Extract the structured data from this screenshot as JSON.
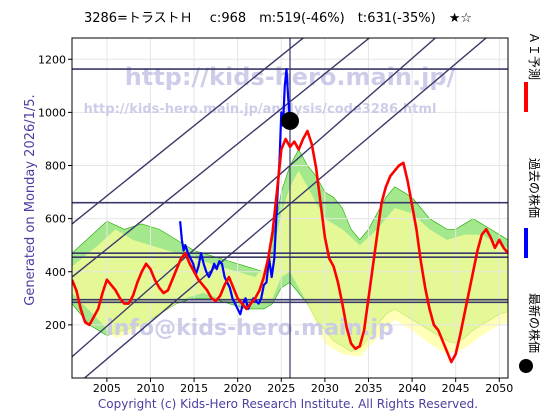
{
  "chart_data": {
    "type": "line",
    "title": "3286=トラストＨ　 c:968　m:519(-46%)　t:631(-35%)　★☆",
    "side_label": "Generated on Monday 2026/1/5.",
    "copyright": "Copyright (c) Kids-Hero Research Institute. All Rights Reserved.",
    "watermarks": {
      "top": "http://kids-hero.main.jp/",
      "mid": "http://kids-hero.main.jp/analysis/code3286.html",
      "bottom": "info@kids-hero.main.jp"
    },
    "xlim": [
      2001,
      2051
    ],
    "ylim": [
      0,
      1280
    ],
    "x_ticks": [
      2005,
      2010,
      2015,
      2020,
      2025,
      2030,
      2035,
      2040,
      2045,
      2050
    ],
    "y_ticks": [
      200,
      400,
      600,
      800,
      1000,
      1200
    ],
    "legend": [
      {
        "label": "ＡＩ予測",
        "color": "#ff0000",
        "marker": "line"
      },
      {
        "label": "過去の株価",
        "color": "#0000ff",
        "marker": "line"
      },
      {
        "label": "最新の株価",
        "color": "#000000",
        "marker": "dot"
      }
    ],
    "latest_point": {
      "x": 2026.0,
      "y": 968
    },
    "horizontal_levels": [
      1163,
      660,
      470,
      455,
      295,
      285
    ],
    "diagonal_lines": [
      {
        "x0": 2001,
        "y0": -40,
        "x1": 2051,
        "y1": 1350
      },
      {
        "x0": 2001,
        "y0": 80,
        "x1": 2051,
        "y1": 1520
      },
      {
        "x0": 2001,
        "y0": 380,
        "x1": 2051,
        "y1": 1700
      },
      {
        "x0": 2001,
        "y0": 580,
        "x1": 2051,
        "y1": 1900
      }
    ],
    "series": [
      {
        "name": "過去の株価",
        "color": "#0000ff",
        "points": [
          [
            2013.4,
            590
          ],
          [
            2013.6,
            520
          ],
          [
            2013.8,
            480
          ],
          [
            2014.0,
            500
          ],
          [
            2014.3,
            470
          ],
          [
            2014.6,
            450
          ],
          [
            2014.9,
            430
          ],
          [
            2015.2,
            390
          ],
          [
            2015.5,
            420
          ],
          [
            2015.8,
            470
          ],
          [
            2016.1,
            430
          ],
          [
            2016.4,
            400
          ],
          [
            2016.7,
            380
          ],
          [
            2017.0,
            400
          ],
          [
            2017.3,
            430
          ],
          [
            2017.6,
            410
          ],
          [
            2017.9,
            440
          ],
          [
            2018.2,
            430
          ],
          [
            2018.5,
            380
          ],
          [
            2018.8,
            360
          ],
          [
            2019.1,
            340
          ],
          [
            2019.4,
            300
          ],
          [
            2019.7,
            280
          ],
          [
            2020.0,
            260
          ],
          [
            2020.3,
            240
          ],
          [
            2020.6,
            280
          ],
          [
            2020.9,
            300
          ],
          [
            2021.2,
            260
          ],
          [
            2021.5,
            280
          ],
          [
            2021.8,
            300
          ],
          [
            2022.1,
            290
          ],
          [
            2022.4,
            280
          ],
          [
            2022.7,
            300
          ],
          [
            2023.0,
            350
          ],
          [
            2023.3,
            360
          ],
          [
            2023.6,
            450
          ],
          [
            2023.9,
            380
          ],
          [
            2024.2,
            450
          ],
          [
            2024.5,
            650
          ],
          [
            2024.8,
            820
          ],
          [
            2025.0,
            1000
          ],
          [
            2025.2,
            950
          ],
          [
            2025.4,
            1100
          ],
          [
            2025.6,
            1163
          ],
          [
            2025.8,
            1050
          ],
          [
            2026.0,
            968
          ]
        ]
      },
      {
        "name": "ＡＩ予測",
        "color": "#ff0000",
        "points": [
          [
            2001.0,
            370
          ],
          [
            2001.5,
            330
          ],
          [
            2002.0,
            260
          ],
          [
            2002.5,
            210
          ],
          [
            2003.0,
            200
          ],
          [
            2003.5,
            230
          ],
          [
            2004.0,
            260
          ],
          [
            2004.5,
            320
          ],
          [
            2005.0,
            370
          ],
          [
            2005.5,
            350
          ],
          [
            2006.0,
            330
          ],
          [
            2006.5,
            300
          ],
          [
            2007.0,
            280
          ],
          [
            2007.5,
            280
          ],
          [
            2008.0,
            310
          ],
          [
            2008.5,
            360
          ],
          [
            2009.0,
            400
          ],
          [
            2009.5,
            430
          ],
          [
            2010.0,
            410
          ],
          [
            2010.5,
            370
          ],
          [
            2011.0,
            340
          ],
          [
            2011.5,
            320
          ],
          [
            2012.0,
            330
          ],
          [
            2012.5,
            370
          ],
          [
            2013.0,
            410
          ],
          [
            2013.5,
            450
          ],
          [
            2014.0,
            470
          ],
          [
            2014.5,
            430
          ],
          [
            2015.0,
            400
          ],
          [
            2015.5,
            370
          ],
          [
            2016.0,
            350
          ],
          [
            2016.5,
            330
          ],
          [
            2017.0,
            300
          ],
          [
            2017.5,
            290
          ],
          [
            2018.0,
            310
          ],
          [
            2018.5,
            350
          ],
          [
            2019.0,
            380
          ],
          [
            2019.5,
            340
          ],
          [
            2020.0,
            300
          ],
          [
            2020.5,
            280
          ],
          [
            2021.0,
            260
          ],
          [
            2021.5,
            280
          ],
          [
            2022.0,
            300
          ],
          [
            2022.5,
            330
          ],
          [
            2023.0,
            380
          ],
          [
            2023.5,
            450
          ],
          [
            2024.0,
            550
          ],
          [
            2024.5,
            700
          ],
          [
            2025.0,
            860
          ],
          [
            2025.5,
            900
          ],
          [
            2026.0,
            870
          ],
          [
            2026.5,
            890
          ],
          [
            2027.0,
            860
          ],
          [
            2027.5,
            900
          ],
          [
            2028.0,
            930
          ],
          [
            2028.5,
            880
          ],
          [
            2029.0,
            790
          ],
          [
            2029.5,
            660
          ],
          [
            2030.0,
            530
          ],
          [
            2030.5,
            450
          ],
          [
            2031.0,
            420
          ],
          [
            2031.5,
            360
          ],
          [
            2032.0,
            280
          ],
          [
            2032.5,
            190
          ],
          [
            2033.0,
            130
          ],
          [
            2033.5,
            110
          ],
          [
            2034.0,
            120
          ],
          [
            2034.5,
            180
          ],
          [
            2035.0,
            300
          ],
          [
            2035.5,
            420
          ],
          [
            2036.0,
            540
          ],
          [
            2036.5,
            660
          ],
          [
            2037.0,
            720
          ],
          [
            2037.5,
            760
          ],
          [
            2038.0,
            780
          ],
          [
            2038.5,
            800
          ],
          [
            2039.0,
            810
          ],
          [
            2039.5,
            740
          ],
          [
            2040.0,
            650
          ],
          [
            2040.5,
            560
          ],
          [
            2041.0,
            440
          ],
          [
            2041.5,
            340
          ],
          [
            2042.0,
            260
          ],
          [
            2042.5,
            200
          ],
          [
            2043.0,
            180
          ],
          [
            2043.5,
            140
          ],
          [
            2044.0,
            100
          ],
          [
            2044.5,
            60
          ],
          [
            2045.0,
            90
          ],
          [
            2045.5,
            160
          ],
          [
            2046.0,
            240
          ],
          [
            2046.5,
            320
          ],
          [
            2047.0,
            400
          ],
          [
            2047.5,
            480
          ],
          [
            2048.0,
            540
          ],
          [
            2048.5,
            560
          ],
          [
            2049.0,
            530
          ],
          [
            2049.5,
            490
          ],
          [
            2050.0,
            520
          ],
          [
            2050.5,
            490
          ],
          [
            2051.0,
            470
          ]
        ]
      }
    ],
    "simulation_band": {
      "color": "#33cc00",
      "upper": [
        [
          2001,
          470
        ],
        [
          2003,
          530
        ],
        [
          2005,
          590
        ],
        [
          2007,
          560
        ],
        [
          2009,
          580
        ],
        [
          2011,
          560
        ],
        [
          2013,
          520
        ],
        [
          2015,
          480
        ],
        [
          2017,
          460
        ],
        [
          2019,
          440
        ],
        [
          2021,
          420
        ],
        [
          2023,
          400
        ],
        [
          2024,
          520
        ],
        [
          2025,
          700
        ],
        [
          2026,
          800
        ],
        [
          2027,
          860
        ],
        [
          2028,
          800
        ],
        [
          2029,
          760
        ],
        [
          2030,
          700
        ],
        [
          2031,
          680
        ],
        [
          2032,
          640
        ],
        [
          2033,
          560
        ],
        [
          2034,
          520
        ],
        [
          2035,
          560
        ],
        [
          2036,
          620
        ],
        [
          2037,
          680
        ],
        [
          2038,
          720
        ],
        [
          2039,
          700
        ],
        [
          2040,
          680
        ],
        [
          2041,
          640
        ],
        [
          2042,
          600
        ],
        [
          2043,
          580
        ],
        [
          2044,
          560
        ],
        [
          2045,
          560
        ],
        [
          2046,
          580
        ],
        [
          2047,
          600
        ],
        [
          2048,
          580
        ],
        [
          2049,
          560
        ],
        [
          2050,
          540
        ],
        [
          2051,
          520
        ]
      ],
      "lower": [
        [
          2001,
          280
        ],
        [
          2003,
          200
        ],
        [
          2005,
          160
        ],
        [
          2007,
          180
        ],
        [
          2009,
          200
        ],
        [
          2011,
          240
        ],
        [
          2013,
          280
        ],
        [
          2015,
          300
        ],
        [
          2017,
          300
        ],
        [
          2019,
          280
        ],
        [
          2021,
          260
        ],
        [
          2023,
          260
        ],
        [
          2024,
          280
        ],
        [
          2025,
          340
        ],
        [
          2026,
          360
        ],
        [
          2027,
          320
        ],
        [
          2028,
          280
        ],
        [
          2029,
          220
        ],
        [
          2030,
          180
        ],
        [
          2031,
          140
        ],
        [
          2032,
          120
        ],
        [
          2033,
          100
        ],
        [
          2034,
          110
        ],
        [
          2035,
          150
        ],
        [
          2036,
          200
        ],
        [
          2037,
          240
        ],
        [
          2038,
          260
        ],
        [
          2039,
          240
        ],
        [
          2040,
          220
        ],
        [
          2041,
          200
        ],
        [
          2042,
          180
        ],
        [
          2043,
          160
        ],
        [
          2044,
          140
        ],
        [
          2045,
          130
        ],
        [
          2046,
          150
        ],
        [
          2047,
          180
        ],
        [
          2048,
          200
        ],
        [
          2049,
          220
        ],
        [
          2050,
          240
        ],
        [
          2051,
          250
        ]
      ]
    },
    "yellow_band": {
      "color": "#ffff99",
      "upper": [
        [
          2001,
          420
        ],
        [
          2004,
          500
        ],
        [
          2006,
          560
        ],
        [
          2008,
          520
        ],
        [
          2010,
          500
        ],
        [
          2012,
          480
        ],
        [
          2014,
          460
        ],
        [
          2016,
          440
        ],
        [
          2018,
          420
        ],
        [
          2020,
          400
        ],
        [
          2022,
          380
        ],
        [
          2024,
          460
        ],
        [
          2025,
          620
        ],
        [
          2026,
          720
        ],
        [
          2027,
          780
        ],
        [
          2028,
          720
        ],
        [
          2029,
          660
        ],
        [
          2030,
          600
        ],
        [
          2032,
          560
        ],
        [
          2034,
          500
        ],
        [
          2036,
          560
        ],
        [
          2038,
          640
        ],
        [
          2040,
          620
        ],
        [
          2042,
          560
        ],
        [
          2044,
          520
        ],
        [
          2046,
          540
        ],
        [
          2048,
          540
        ],
        [
          2050,
          500
        ],
        [
          2051,
          490
        ]
      ],
      "lower": [
        [
          2001,
          320
        ],
        [
          2004,
          220
        ],
        [
          2006,
          150
        ],
        [
          2008,
          170
        ],
        [
          2010,
          220
        ],
        [
          2012,
          260
        ],
        [
          2014,
          300
        ],
        [
          2016,
          320
        ],
        [
          2018,
          300
        ],
        [
          2020,
          280
        ],
        [
          2022,
          280
        ],
        [
          2024,
          300
        ],
        [
          2025,
          380
        ],
        [
          2026,
          400
        ],
        [
          2027,
          340
        ],
        [
          2028,
          280
        ],
        [
          2029,
          200
        ],
        [
          2030,
          130
        ],
        [
          2032,
          90
        ],
        [
          2034,
          80
        ],
        [
          2036,
          150
        ],
        [
          2038,
          220
        ],
        [
          2040,
          180
        ],
        [
          2042,
          130
        ],
        [
          2044,
          90
        ],
        [
          2046,
          110
        ],
        [
          2048,
          160
        ],
        [
          2050,
          200
        ],
        [
          2051,
          210
        ]
      ]
    }
  }
}
